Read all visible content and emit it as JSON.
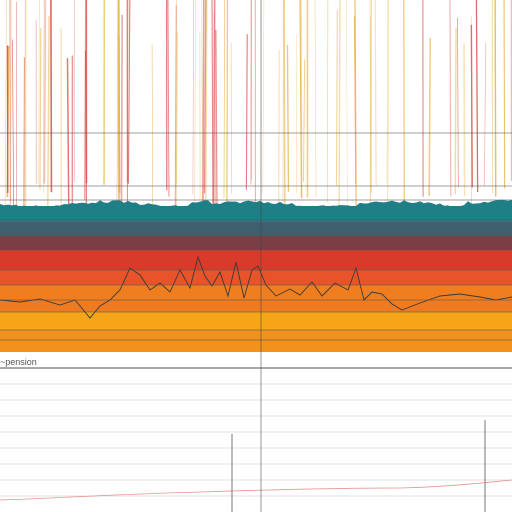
{
  "caption": "~pension",
  "colors": {
    "background": "#ffffff",
    "teal": "#1f7f86",
    "slate": "#3d5f6e",
    "maroon": "#7a3e44",
    "red": "#d93b2b",
    "red_orange": "#e8532a",
    "orange": "#f07d1e",
    "yellow_orange": "#f6a518",
    "amber": "#f2921c",
    "deep_orange": "#ee7b22",
    "streak_red": "#d8504a",
    "streak_gold": "#e8b24a",
    "trace": "#3a3a3a",
    "grid": "#555555",
    "light_grid": "#d9d9d9"
  }
}
